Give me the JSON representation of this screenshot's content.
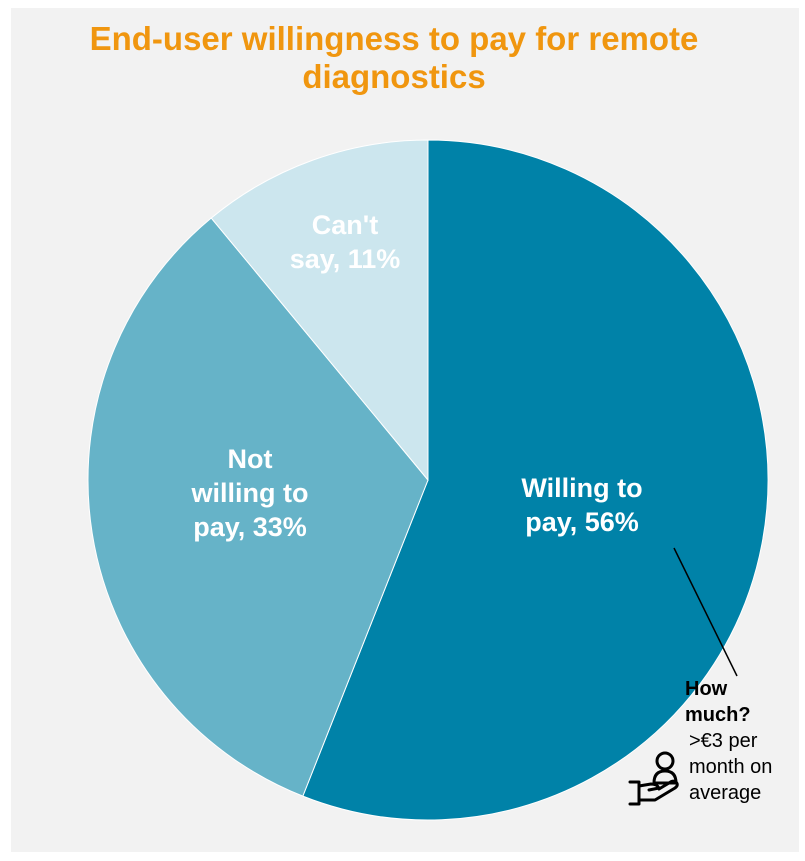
{
  "chart_data": {
    "type": "pie",
    "title_lines": [
      "End-user willingness to pay for remote",
      "diagnostics"
    ],
    "slices": [
      {
        "name": "Willing to",
        "name2": "pay, 56%",
        "value": 56,
        "color": "#0082a8"
      },
      {
        "name": "Not",
        "name2": "willing to",
        "name3": "pay, 33%",
        "value": 33,
        "color": "#66b3c8"
      },
      {
        "name": "Can't",
        "name2": "say, 11%",
        "value": 11,
        "color": "#cce6ee"
      }
    ],
    "annotation": {
      "bold_line1": "How",
      "bold_line2": "much?",
      "line1": ">€3 per",
      "line2": "month on",
      "line3": "average"
    },
    "icon": "hand-holding-person-icon"
  }
}
